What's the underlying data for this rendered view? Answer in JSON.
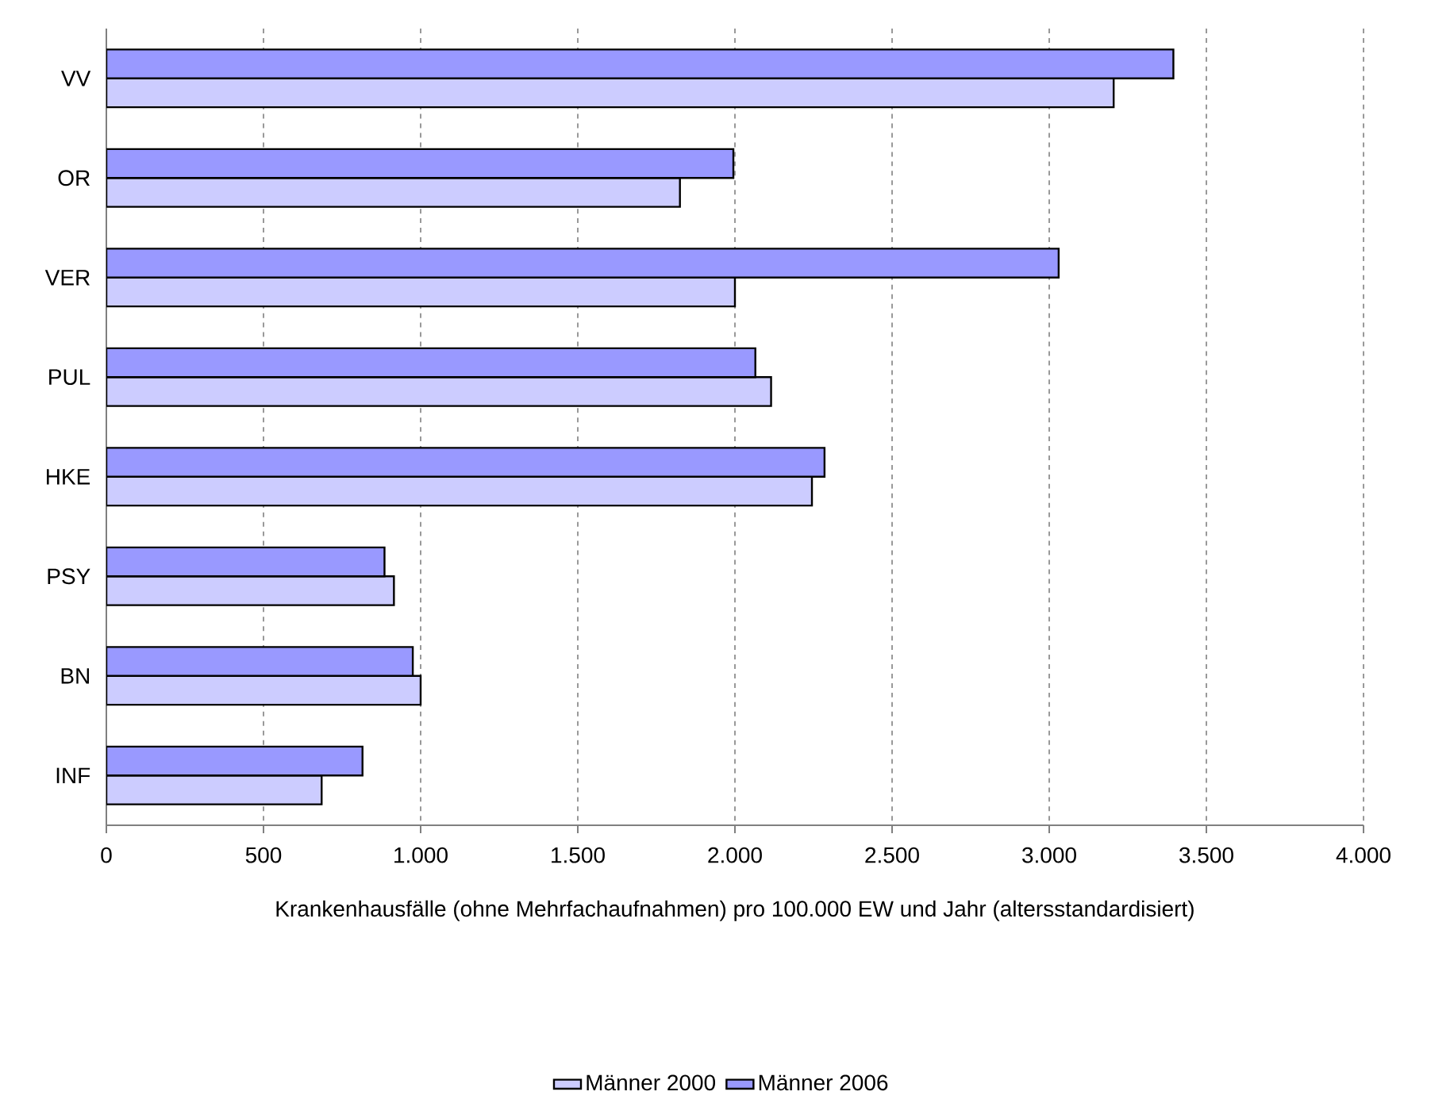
{
  "chart_data": {
    "type": "bar",
    "orientation": "horizontal",
    "xlabel": "Krankenhausfälle (ohne Mehrfachaufnahmen) pro 100.000 EW und Jahr (altersstandardisiert)",
    "categories": [
      "VV",
      "OR",
      "VER",
      "PUL",
      "HKE",
      "PSY",
      "BN",
      "INF"
    ],
    "series": [
      {
        "name": "Männer 2000",
        "color": "#ccccff",
        "values": [
          3205,
          1825,
          2000,
          2115,
          2245,
          915,
          1000,
          685
        ]
      },
      {
        "name": "Männer 2006",
        "color": "#9999ff",
        "values": [
          3395,
          1995,
          3030,
          2065,
          2285,
          885,
          975,
          815
        ]
      }
    ],
    "xlim": [
      0,
      4000
    ],
    "xticks": [
      0,
      500,
      {
        "value": 1000,
        "label": "1.000"
      },
      {
        "value": 1500,
        "label": "1.500"
      },
      {
        "value": 2000,
        "label": "2.000"
      },
      {
        "value": 2500,
        "label": "2.500"
      },
      {
        "value": 3000,
        "label": "3.000"
      },
      {
        "value": 3500,
        "label": "3.500"
      },
      {
        "value": 4000,
        "label": "4.000"
      }
    ],
    "grid": "x",
    "legend": "bottom"
  }
}
